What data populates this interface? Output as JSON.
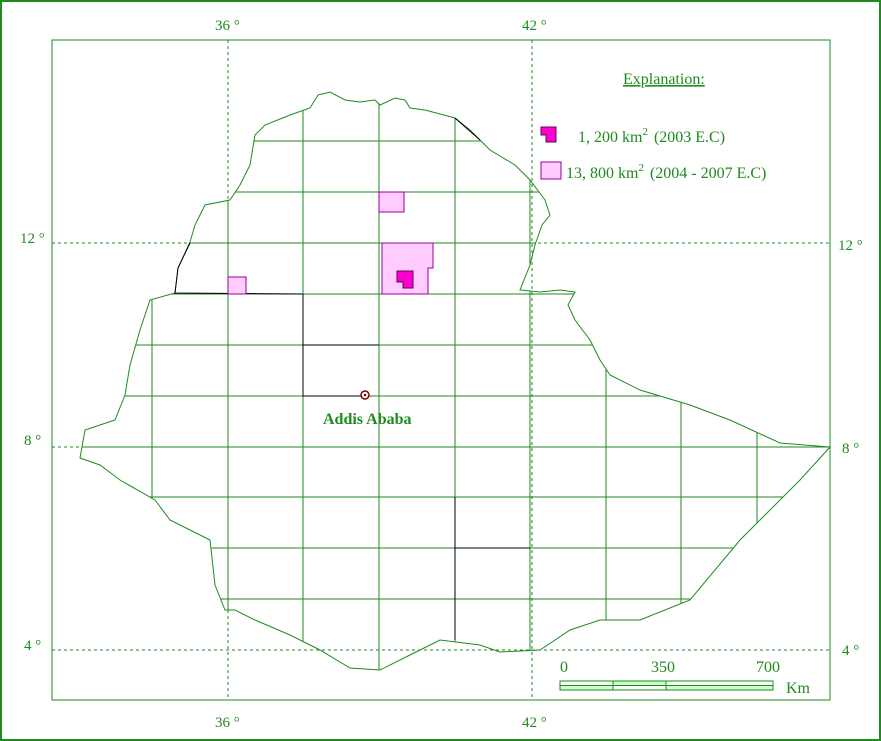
{
  "axes": {
    "top": [
      "36 °",
      "42 °"
    ],
    "bottom": [
      "36 °",
      "42 °"
    ],
    "left": [
      "12 °",
      "8 °",
      "4 °"
    ],
    "right": [
      "12 °",
      "8 °",
      "4 °"
    ]
  },
  "legend": {
    "title": "Explanation:",
    "items": [
      {
        "area": "1, 200 km",
        "superscript": "2",
        "period": "(2003 E.C)"
      },
      {
        "area": "13, 800 km",
        "superscript": "2",
        "period": "(2004 - 2007 E.C)"
      }
    ]
  },
  "city": "Addis Ababa",
  "scale": {
    "ticks": [
      "0",
      "350",
      "700"
    ],
    "unit": "Km"
  }
}
